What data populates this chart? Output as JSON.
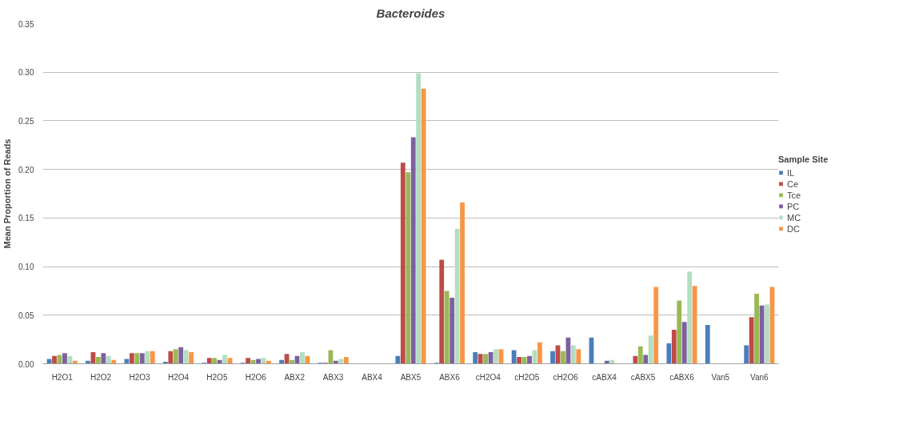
{
  "chart_data": {
    "type": "bar",
    "title": "Bacteroides",
    "ylabel": "Mean Proportion of Reads",
    "legend_title": "Sample Site",
    "categories": [
      "H2O1",
      "H2O2",
      "H2O3",
      "H2O4",
      "H2O5",
      "H2O6",
      "ABX2",
      "ABX3",
      "ABX4",
      "ABX5",
      "ABX6",
      "cH2O4",
      "cH2O5",
      "cH2O6",
      "cABX4",
      "cABX5",
      "cABX6",
      "Van5",
      "Van6"
    ],
    "series": [
      {
        "name": "IL",
        "color": "#4a7ebb",
        "values": [
          0.005,
          0.003,
          0.005,
          0.002,
          0.001,
          0.001,
          0.004,
          0.001,
          0,
          0.008,
          0.001,
          0.012,
          0.014,
          0.013,
          0.027,
          0,
          0.021,
          0.04,
          0.019
        ]
      },
      {
        "name": "Ce",
        "color": "#be4b48",
        "values": [
          0.008,
          0.012,
          0.011,
          0.013,
          0.006,
          0.006,
          0.01,
          0.001,
          0,
          0.207,
          0.107,
          0.01,
          0.007,
          0.019,
          0,
          0.008,
          0.035,
          0,
          0.048
        ]
      },
      {
        "name": "Tce",
        "color": "#98b954",
        "values": [
          0.009,
          0.007,
          0.011,
          0.015,
          0.006,
          0.004,
          0.004,
          0.014,
          0,
          0.197,
          0.075,
          0.01,
          0.007,
          0.013,
          0,
          0.018,
          0.065,
          0,
          0.072
        ]
      },
      {
        "name": "PC",
        "color": "#7d60a0",
        "values": [
          0.011,
          0.011,
          0.011,
          0.017,
          0.004,
          0.005,
          0.008,
          0.003,
          0,
          0.233,
          0.068,
          0.012,
          0.008,
          0.027,
          0.003,
          0.009,
          0.043,
          0,
          0.06
        ]
      },
      {
        "name": "MC",
        "color": "#b3dec1",
        "values": [
          0.008,
          0.008,
          0.013,
          0.014,
          0.009,
          0.006,
          0.012,
          0.005,
          0,
          0.299,
          0.139,
          0.015,
          0.014,
          0.019,
          0.004,
          0.029,
          0.095,
          0,
          0.061
        ]
      },
      {
        "name": "DC",
        "color": "#f79646",
        "values": [
          0.003,
          0.004,
          0.013,
          0.012,
          0.006,
          0.003,
          0.008,
          0.007,
          0,
          0.283,
          0.166,
          0.015,
          0.022,
          0.015,
          0,
          0.079,
          0.08,
          0,
          0.079
        ]
      }
    ],
    "ylim": [
      0,
      0.35
    ],
    "yticks": [
      {
        "value": 0,
        "label": "0.00"
      },
      {
        "value": 0.05,
        "label": "0.05"
      },
      {
        "value": 0.1,
        "label": "0.10"
      },
      {
        "value": 0.15,
        "label": "0.15"
      },
      {
        "value": 0.2,
        "label": "0.20"
      },
      {
        "value": 0.25,
        "label": "0.25"
      },
      {
        "value": 0.3,
        "label": "0.30"
      },
      {
        "value": 0.35,
        "label": "0.35"
      }
    ],
    "grid": "y",
    "legend": "right"
  }
}
